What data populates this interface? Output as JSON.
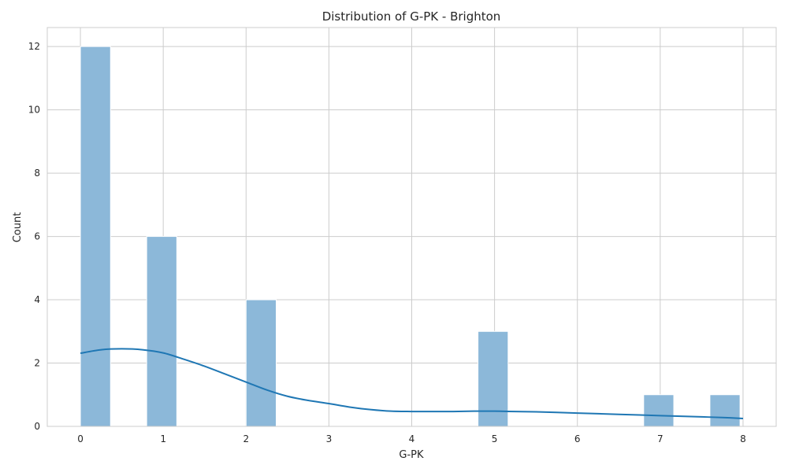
{
  "chart_data": {
    "type": "bar",
    "title": "Distribution of G-PK - Brighton",
    "xlabel": "G-PK",
    "ylabel": "Count",
    "xlim": [
      -0.4,
      8.4
    ],
    "ylim": [
      0,
      12.6
    ],
    "xticks": [
      0,
      1,
      2,
      3,
      4,
      5,
      6,
      7,
      8
    ],
    "yticks": [
      0,
      2,
      4,
      6,
      8,
      10,
      12
    ],
    "grid": true,
    "bar_width": 0.3636,
    "bars": [
      {
        "x_start": 0.0,
        "value": 12
      },
      {
        "x_start": 0.8,
        "value": 6
      },
      {
        "x_start": 2.0,
        "value": 4
      },
      {
        "x_start": 4.8,
        "value": 3
      },
      {
        "x_start": 6.8,
        "value": 1
      },
      {
        "x_start": 7.6,
        "value": 1
      }
    ],
    "kde": {
      "x": [
        0,
        0.25,
        0.5,
        0.75,
        1.0,
        1.25,
        1.5,
        1.75,
        2.0,
        2.25,
        2.5,
        2.75,
        3.0,
        3.25,
        3.5,
        3.75,
        4.0,
        4.25,
        4.5,
        4.75,
        5.0,
        5.25,
        5.5,
        5.75,
        6.0,
        6.25,
        6.5,
        6.75,
        7.0,
        7.25,
        7.5,
        7.75,
        8.0
      ],
      "y": [
        2.31,
        2.42,
        2.45,
        2.42,
        2.32,
        2.12,
        1.9,
        1.65,
        1.4,
        1.15,
        0.95,
        0.82,
        0.72,
        0.61,
        0.53,
        0.48,
        0.47,
        0.47,
        0.47,
        0.48,
        0.48,
        0.47,
        0.46,
        0.44,
        0.42,
        0.4,
        0.38,
        0.36,
        0.34,
        0.32,
        0.3,
        0.28,
        0.25
      ]
    },
    "colors": {
      "bar_fill": "#8cb8d9",
      "bar_stroke": "#ffffff",
      "kde_line": "#1f77b4",
      "grid": "#cccccc",
      "background": "#ffffff"
    }
  }
}
